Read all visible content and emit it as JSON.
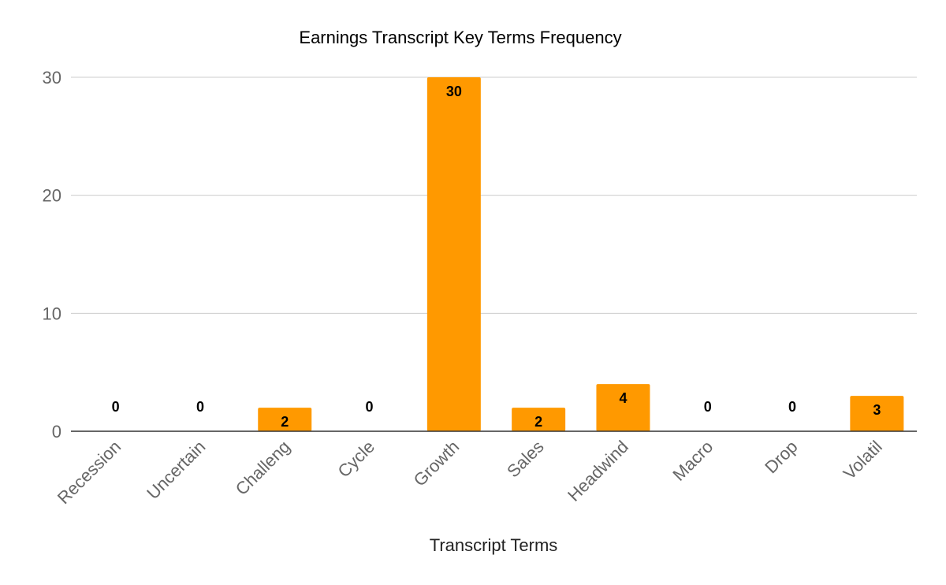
{
  "chart_data": {
    "type": "bar",
    "title": "Earnings Transcript Key Terms Frequency",
    "xlabel": "Transcript Terms",
    "ylabel": "",
    "categories": [
      "Recession",
      "Uncertain",
      "Challeng",
      "Cycle",
      "Growth",
      "Sales",
      "Headwind",
      "Macro",
      "Drop",
      "Volatil"
    ],
    "values": [
      0,
      0,
      2,
      0,
      30,
      2,
      4,
      0,
      0,
      3
    ],
    "ylim": [
      0,
      30
    ],
    "yticks": [
      0,
      10,
      20,
      30
    ],
    "grid": true,
    "legend": "none",
    "bar_color": "#ff9900",
    "gridline_color": "#cccccc",
    "baseline_color": "#333333"
  }
}
